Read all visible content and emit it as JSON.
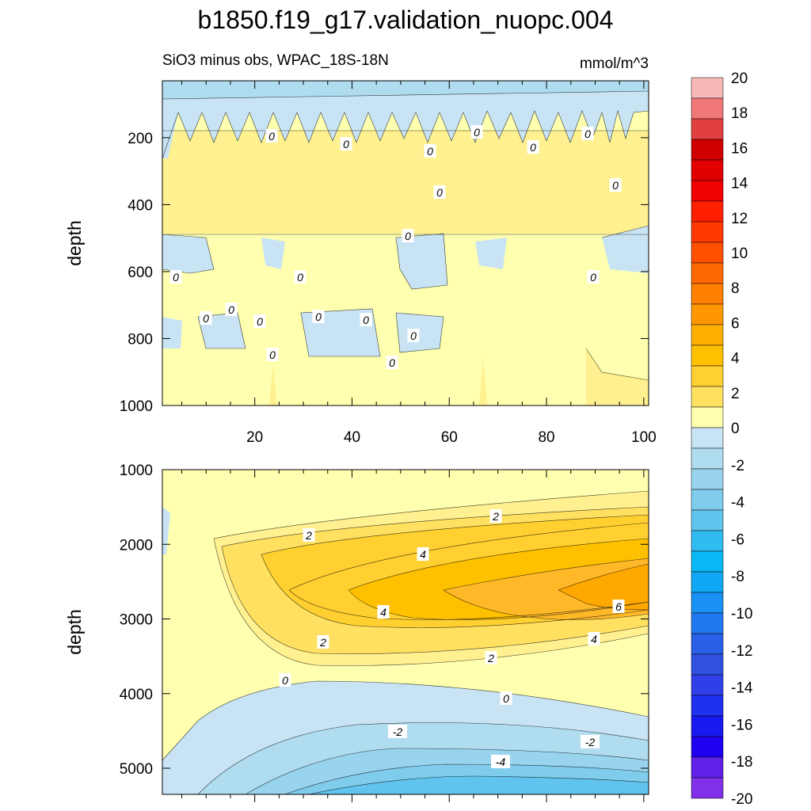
{
  "figure": {
    "title": "b1850.f19_g17.validation_nuopc.004",
    "subtitle_left": "SiO3 minus obs, WPAC_18S-18N",
    "subtitle_right": "mmol/m^3"
  },
  "chart_data": [
    {
      "type": "heatmap",
      "panel": "upper",
      "ylabel": "depth",
      "xlabel": "",
      "xlim": [
        1,
        101
      ],
      "ylim": [
        1000,
        30
      ],
      "x_ticks": [
        "20",
        "40",
        "60",
        "80",
        "100"
      ],
      "y_ticks": [
        "200",
        "400",
        "600",
        "800",
        "1000"
      ],
      "contour_labels": [
        "0",
        "0",
        "0",
        "0",
        "0",
        "0",
        "0",
        "0",
        "0",
        "0",
        "0",
        "0",
        "0",
        "0",
        "0",
        "0",
        "0",
        "0",
        "0",
        "0"
      ],
      "description_values": {
        "surface_layer_depth_range": [
          30,
          130
        ],
        "surface_layer_value": -1,
        "mid_layer_value_range": [
          0,
          2
        ]
      }
    },
    {
      "type": "heatmap",
      "panel": "lower",
      "ylabel": "depth",
      "xlabel": "",
      "xlim": [
        1,
        101
      ],
      "ylim": [
        5350,
        1000
      ],
      "y_ticks": [
        "1000",
        "2000",
        "3000",
        "4000",
        "5000"
      ],
      "contour_labels": [
        "2",
        "2",
        "4",
        "4",
        "6",
        "2",
        "4",
        "2",
        "0",
        "0",
        "-2",
        "-2",
        "-4"
      ],
      "description_values": {
        "max_value": 7,
        "max_location": {
          "x": 95,
          "depth": 2650
        },
        "min_value": -5,
        "min_location": {
          "x": 60,
          "depth": 5300
        }
      }
    }
  ],
  "colorbar": {
    "levels": [
      "20",
      "18",
      "16",
      "14",
      "12",
      "10",
      "8",
      "6",
      "4",
      "2",
      "0",
      "-2",
      "-4",
      "-6",
      "-8",
      "-10",
      "-12",
      "-14",
      "-16",
      "-18",
      "-20"
    ],
    "colors": [
      "#f8b8b8",
      "#f07878",
      "#e04040",
      "#d00000",
      "#e00000",
      "#f00000",
      "#ff2000",
      "#ff3800",
      "#ff5000",
      "#ff6800",
      "#ff8000",
      "#ff9800",
      "#ffb000",
      "#ffc000",
      "#ffd030",
      "#ffe060",
      "#ffffb0",
      "#c8e4f4",
      "#b0dcf0",
      "#98d4ee",
      "#80ccec",
      "#60c4ee",
      "#30bcf0",
      "#08b8f4",
      "#10a8f4",
      "#1890f4",
      "#2078f0",
      "#2860e8",
      "#3050e0",
      "#3040e8",
      "#2030f0",
      "#1818f0",
      "#2000f0",
      "#6020e8",
      "#8030e8"
    ]
  }
}
